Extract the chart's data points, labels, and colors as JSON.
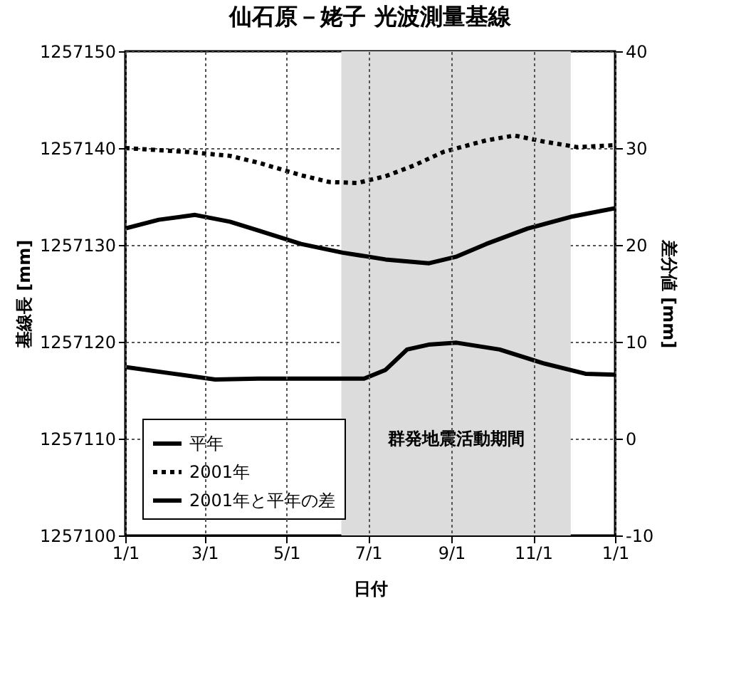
{
  "chart_data": {
    "type": "line",
    "title": "仙石原－姥子  光波測量基線",
    "xlabel": "日付",
    "ylabel": "基線長 [mm]",
    "y2label": "差分値 [mm]",
    "xlim": [
      "2001-01-01",
      "2002-01-01"
    ],
    "xticks": [
      {
        "value": "2001-01-01",
        "label": "1/1"
      },
      {
        "value": "2001-03-01",
        "label": "3/1"
      },
      {
        "value": "2001-05-01",
        "label": "5/1"
      },
      {
        "value": "2001-07-01",
        "label": "7/1"
      },
      {
        "value": "2001-09-01",
        "label": "9/1"
      },
      {
        "value": "2001-11-01",
        "label": "11/1"
      },
      {
        "value": "2002-01-01",
        "label": "1/1"
      }
    ],
    "ylim": [
      1257100,
      1257150
    ],
    "yticks": [
      1257100,
      1257110,
      1257120,
      1257130,
      1257140,
      1257150
    ],
    "y2lim": [
      -10,
      40
    ],
    "y2ticks": [
      -10,
      0,
      10,
      20,
      30,
      40
    ],
    "grid": true,
    "legend": "bottom left",
    "bands": [
      {
        "axis": "x",
        "from": "2001-06-11",
        "to": "2001-11-29",
        "label": "群発地震活動期間",
        "color": "#dcdcdc"
      }
    ],
    "series": [
      {
        "name": "平年",
        "color": "#000000",
        "line_style": "solid",
        "x": [
          "2001-01-01",
          "2001-01-26",
          "2001-02-22",
          "2001-03-20",
          "2001-04-10",
          "2001-05-12",
          "2001-06-12",
          "2001-07-14",
          "2001-08-15",
          "2001-09-05",
          "2001-09-27",
          "2001-10-28",
          "2001-11-29",
          "2002-01-01"
        ],
        "values": [
          1257131.7,
          1257132.6,
          1257133.1,
          1257132.4,
          1257131.5,
          1257130.1,
          1257129.2,
          1257128.5,
          1257128.1,
          1257128.8,
          1257130.1,
          1257131.7,
          1257132.9,
          1257133.8
        ]
      },
      {
        "name": "2001年",
        "color": "#000000",
        "line_style": "dotted",
        "x": [
          "2001-01-01",
          "2001-02-17",
          "2001-03-20",
          "2001-04-10",
          "2001-05-12",
          "2001-06-02",
          "2001-06-23",
          "2001-07-14",
          "2001-08-04",
          "2001-08-26",
          "2001-09-27",
          "2001-10-18",
          "2001-11-08",
          "2001-12-04",
          "2002-01-01"
        ],
        "values": [
          1257140.0,
          1257139.6,
          1257139.2,
          1257138.5,
          1257137.2,
          1257136.5,
          1257136.4,
          1257137.1,
          1257138.2,
          1257139.6,
          1257140.8,
          1257141.3,
          1257140.7,
          1257140.1,
          1257140.3
        ]
      },
      {
        "name": "2001年と平年の差",
        "color": "#000000",
        "line_style": "solid",
        "axis": "y2",
        "x": [
          "2001-01-01",
          "2001-02-06",
          "2001-03-09",
          "2001-04-10",
          "2001-05-22",
          "2001-06-28",
          "2001-07-14",
          "2001-07-30",
          "2001-08-15",
          "2001-09-05",
          "2001-10-07",
          "2001-11-08",
          "2001-12-10",
          "2002-01-01"
        ],
        "values": [
          7.4,
          6.7,
          6.1,
          6.2,
          6.2,
          6.2,
          7.1,
          9.2,
          9.7,
          9.9,
          9.2,
          7.8,
          6.7,
          6.6
        ]
      }
    ]
  }
}
